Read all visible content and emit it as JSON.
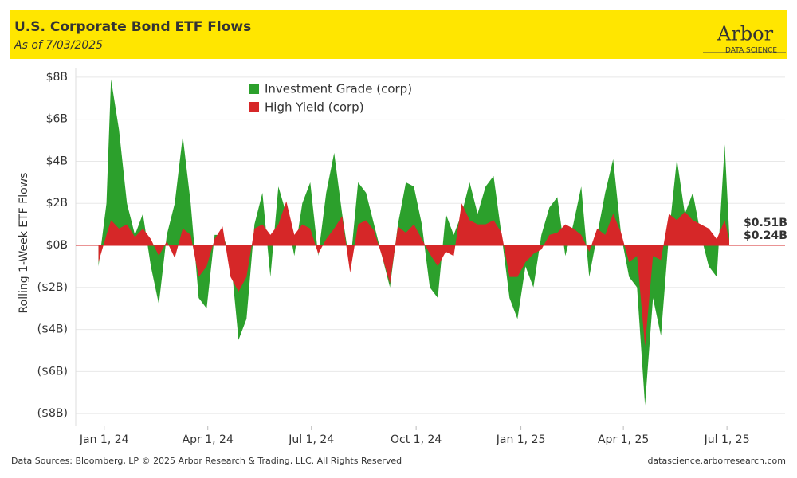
{
  "header": {
    "title": "U.S. Corporate Bond ETF Flows",
    "subtitle": "As of 7/03/2025",
    "logo": "Arbor",
    "logo_sub": "DATA SCIENCE"
  },
  "footer": {
    "left": "Data Sources: Bloomberg, LP © 2025 Arbor Research & Trading, LLC. All Rights Reserved",
    "right": "datascience.arborresearch.com"
  },
  "chart_data": {
    "type": "area",
    "ylabel": "Rolling 1-Week ETF Flows",
    "x": [
      "2023-12-27",
      "2024-01-03",
      "2024-01-07",
      "2024-01-14",
      "2024-01-21",
      "2024-01-28",
      "2024-02-04",
      "2024-02-11",
      "2024-02-18",
      "2024-02-25",
      "2024-03-03",
      "2024-03-10",
      "2024-03-17",
      "2024-03-24",
      "2024-03-31",
      "2024-04-07",
      "2024-04-14",
      "2024-04-21",
      "2024-04-28",
      "2024-05-05",
      "2024-05-12",
      "2024-05-19",
      "2024-05-26",
      "2024-06-02",
      "2024-06-09",
      "2024-06-16",
      "2024-06-23",
      "2024-06-30",
      "2024-07-07",
      "2024-07-14",
      "2024-07-21",
      "2024-07-28",
      "2024-08-04",
      "2024-08-11",
      "2024-08-18",
      "2024-08-25",
      "2024-09-01",
      "2024-09-08",
      "2024-09-15",
      "2024-09-22",
      "2024-09-29",
      "2024-10-06",
      "2024-10-13",
      "2024-10-20",
      "2024-10-27",
      "2024-11-03",
      "2024-11-10",
      "2024-11-17",
      "2024-11-24",
      "2024-12-01",
      "2024-12-08",
      "2024-12-15",
      "2024-12-22",
      "2024-12-29",
      "2025-01-05",
      "2025-01-12",
      "2025-01-19",
      "2025-01-26",
      "2025-02-02",
      "2025-02-09",
      "2025-02-16",
      "2025-02-23",
      "2025-03-02",
      "2025-03-09",
      "2025-03-16",
      "2025-03-23",
      "2025-03-30",
      "2025-04-06",
      "2025-04-13",
      "2025-04-20",
      "2025-04-27",
      "2025-05-04",
      "2025-05-11",
      "2025-05-18",
      "2025-05-25",
      "2025-06-01",
      "2025-06-08",
      "2025-06-15",
      "2025-06-22",
      "2025-06-29",
      "2025-07-03"
    ],
    "series": [
      {
        "name": "Investment Grade (corp)",
        "color": "#2ca02c",
        "end_label": "$0.51B",
        "values": [
          -1.0,
          2.0,
          7.9,
          5.5,
          2.0,
          0.5,
          1.5,
          -1.0,
          -2.8,
          0.5,
          2.0,
          5.2,
          2.0,
          -2.5,
          -3.0,
          0.5,
          0.5,
          -0.5,
          -4.5,
          -3.5,
          1.0,
          2.5,
          -1.5,
          2.8,
          1.5,
          -0.5,
          2.0,
          3.0,
          -0.5,
          2.5,
          4.4,
          1.5,
          -1.0,
          3.0,
          2.5,
          1.0,
          -0.5,
          -2.0,
          1.0,
          3.0,
          2.8,
          1.0,
          -2.0,
          -2.5,
          1.5,
          0.5,
          1.5,
          3.0,
          1.5,
          2.8,
          3.3,
          0.5,
          -2.5,
          -3.5,
          -1.0,
          -2.0,
          0.5,
          1.8,
          2.3,
          -0.5,
          1.0,
          2.8,
          -1.5,
          0.5,
          2.5,
          4.1,
          0.5,
          -1.5,
          -2.0,
          -7.6,
          -2.5,
          -4.3,
          0.5,
          4.1,
          1.5,
          2.5,
          0.5,
          -1.0,
          -1.5,
          4.8,
          0.51
        ]
      },
      {
        "name": "High Yield (corp)",
        "color": "#d62728",
        "end_label": "$0.24B",
        "values": [
          -0.8,
          0.5,
          1.2,
          0.8,
          1.0,
          0.4,
          0.8,
          0.3,
          -0.5,
          0.2,
          -0.6,
          0.8,
          0.5,
          -1.5,
          -1.0,
          0.3,
          0.9,
          -1.5,
          -2.2,
          -1.5,
          0.8,
          1.0,
          0.5,
          1.0,
          2.1,
          0.5,
          1.0,
          0.8,
          -0.4,
          0.3,
          0.8,
          1.4,
          -1.3,
          1.0,
          1.2,
          0.7,
          -0.5,
          -1.8,
          0.9,
          0.6,
          1.0,
          0.3,
          -0.4,
          -1.0,
          -0.3,
          -0.5,
          2.0,
          1.2,
          1.0,
          1.0,
          1.2,
          0.6,
          -1.5,
          -1.5,
          -0.8,
          -0.4,
          -0.2,
          0.5,
          0.6,
          1.0,
          0.8,
          0.5,
          -0.3,
          0.8,
          0.5,
          1.5,
          0.6,
          -0.8,
          -0.5,
          -4.8,
          -0.5,
          -0.7,
          1.5,
          1.2,
          1.6,
          1.2,
          1.0,
          0.8,
          0.3,
          1.2,
          0.24
        ]
      }
    ],
    "xlim": [
      "2023-12-07",
      "2025-08-21"
    ],
    "xticks": [
      {
        "value": "2024-01-01",
        "label": "Jan 1, 24"
      },
      {
        "value": "2024-04-01",
        "label": "Apr 1, 24"
      },
      {
        "value": "2024-07-01",
        "label": "Jul 1, 24"
      },
      {
        "value": "2024-10-01",
        "label": "Oct 1, 24"
      },
      {
        "value": "2025-01-01",
        "label": "Jan 1, 25"
      },
      {
        "value": "2025-04-01",
        "label": "Apr 1, 25"
      },
      {
        "value": "2025-07-01",
        "label": "Jul 1, 25"
      }
    ],
    "ylim": [
      -8.6,
      8.45
    ],
    "yticks": [
      {
        "value": 8,
        "label": "$8B"
      },
      {
        "value": 6,
        "label": "$6B"
      },
      {
        "value": 4,
        "label": "$4B"
      },
      {
        "value": 2,
        "label": "$2B"
      },
      {
        "value": 0,
        "label": "$0B"
      },
      {
        "value": -2,
        "label": "($2B)"
      },
      {
        "value": -4,
        "label": "($4B)"
      },
      {
        "value": -6,
        "label": "($6B)"
      },
      {
        "value": -8,
        "label": "($8B)"
      }
    ],
    "grid": true
  }
}
